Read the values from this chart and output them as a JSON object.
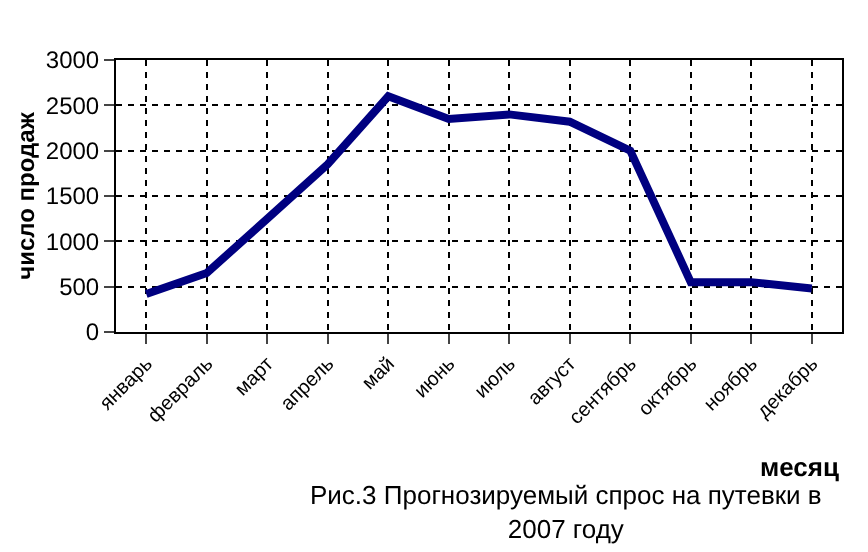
{
  "chart_data": {
    "type": "line",
    "title": "Рис.3 Прогнозируемый спрос на путевки в 2007 году",
    "xlabel": "месяц",
    "ylabel": "число продаж",
    "categories": [
      "январь",
      "февраль",
      "март",
      "апрель",
      "май",
      "июнь",
      "июль",
      "август",
      "сентябрь",
      "октябрь",
      "ноябрь",
      "декабрь"
    ],
    "series": [
      {
        "color": "#000080",
        "values": [
          420,
          650,
          1250,
          1850,
          2600,
          2350,
          2400,
          2320,
          2000,
          550,
          550,
          480
        ]
      }
    ],
    "ylim": [
      0,
      3000
    ],
    "yticks": [
      0,
      500,
      1000,
      1500,
      2000,
      2500,
      3000
    ],
    "grid": true,
    "legend": false,
    "marker": "none",
    "line_style": "solid"
  }
}
